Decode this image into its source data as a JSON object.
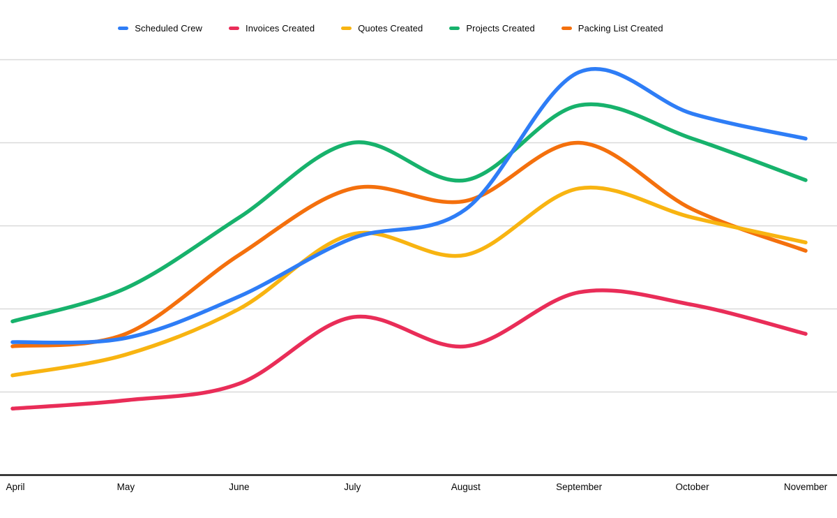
{
  "chart_data": {
    "type": "line",
    "smooth": true,
    "title": "",
    "xlabel": "",
    "ylabel": "",
    "categories": [
      "April",
      "May",
      "June",
      "July",
      "August",
      "September",
      "October",
      "November"
    ],
    "series": [
      {
        "name": "Scheduled Crew",
        "color": "#2e7df6",
        "values": [
          1.6,
          1.65,
          2.15,
          2.85,
          3.2,
          4.85,
          4.35,
          4.05
        ]
      },
      {
        "name": "Invoices Created",
        "color": "#e92d58",
        "values": [
          0.8,
          0.9,
          1.1,
          1.9,
          1.55,
          2.2,
          2.05,
          1.7
        ]
      },
      {
        "name": "Quotes Created",
        "color": "#f8b411",
        "values": [
          1.2,
          1.45,
          2.0,
          2.9,
          2.65,
          3.45,
          3.1,
          2.8
        ]
      },
      {
        "name": "Projects Created",
        "color": "#17b26c",
        "values": [
          1.85,
          2.25,
          3.1,
          4.0,
          3.55,
          4.45,
          4.05,
          3.55
        ]
      },
      {
        "name": "Packing List Created",
        "color": "#f4700d",
        "values": [
          1.55,
          1.7,
          2.65,
          3.45,
          3.3,
          4.0,
          3.2,
          2.7
        ]
      }
    ],
    "ylim": [
      0,
      5.6
    ],
    "y_gridline_values": [
      1,
      2,
      3,
      4,
      5
    ],
    "y_axis_labels_visible": false,
    "value_units": "gridline units (no y-axis tick labels visible)",
    "legend_position": "top",
    "grid": "horizontal",
    "axis_color": "#1a1a1a",
    "gridline_color": "#d9d9d9",
    "background_color": "#ffffff"
  }
}
